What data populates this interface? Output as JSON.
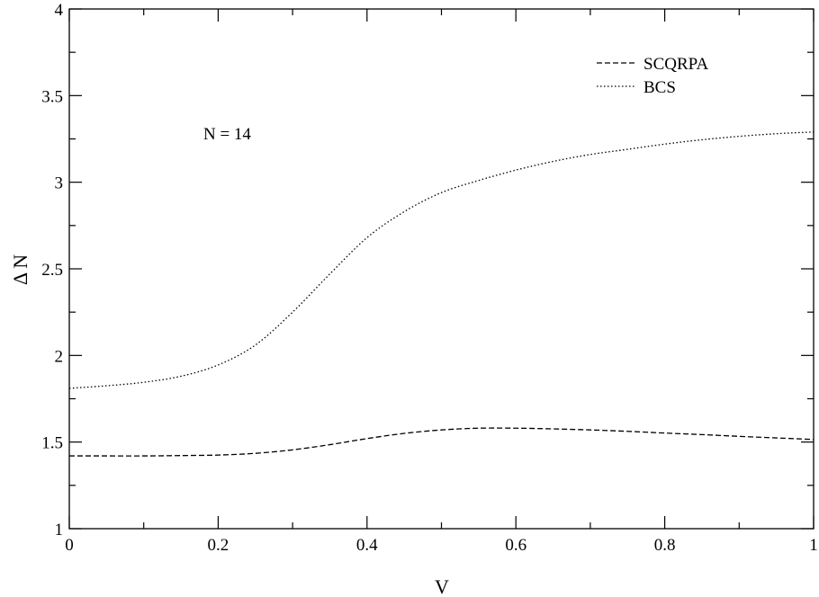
{
  "chart_data": {
    "type": "line",
    "title": "",
    "xlabel": "V",
    "ylabel": "Δ N",
    "xlim": [
      0,
      1
    ],
    "ylim": [
      1,
      4
    ],
    "x_ticks": [
      0,
      0.2,
      0.4,
      0.6,
      0.8,
      1
    ],
    "x_tick_labels": [
      "0",
      "0.2",
      "0.4",
      "0.6",
      "0.8",
      "1"
    ],
    "y_ticks": [
      1,
      1.5,
      2,
      2.5,
      3,
      3.5,
      4
    ],
    "y_tick_labels": [
      "1",
      "1.5",
      "2",
      "2.5",
      "3",
      "3.5",
      "4"
    ],
    "grid": false,
    "legend_position": "top-right",
    "annotation": "N = 14",
    "series": [
      {
        "name": "SCQRPA",
        "style": "dashed",
        "color": "#000000",
        "x": [
          0,
          0.05,
          0.1,
          0.15,
          0.2,
          0.25,
          0.3,
          0.35,
          0.4,
          0.45,
          0.5,
          0.55,
          0.6,
          0.65,
          0.7,
          0.75,
          0.8,
          0.85,
          0.9,
          0.95,
          1.0
        ],
        "y": [
          1.42,
          1.42,
          1.42,
          1.422,
          1.425,
          1.435,
          1.455,
          1.485,
          1.52,
          1.55,
          1.57,
          1.58,
          1.58,
          1.576,
          1.57,
          1.562,
          1.552,
          1.543,
          1.533,
          1.524,
          1.515
        ]
      },
      {
        "name": "BCS",
        "style": "dotted",
        "color": "#000000",
        "x": [
          0,
          0.05,
          0.1,
          0.15,
          0.2,
          0.25,
          0.3,
          0.35,
          0.4,
          0.45,
          0.5,
          0.55,
          0.6,
          0.65,
          0.7,
          0.75,
          0.8,
          0.85,
          0.9,
          0.95,
          1.0
        ],
        "y": [
          1.81,
          1.825,
          1.845,
          1.88,
          1.945,
          2.06,
          2.25,
          2.47,
          2.68,
          2.83,
          2.94,
          3.01,
          3.07,
          3.12,
          3.16,
          3.19,
          3.22,
          3.245,
          3.265,
          3.28,
          3.29
        ]
      }
    ]
  }
}
